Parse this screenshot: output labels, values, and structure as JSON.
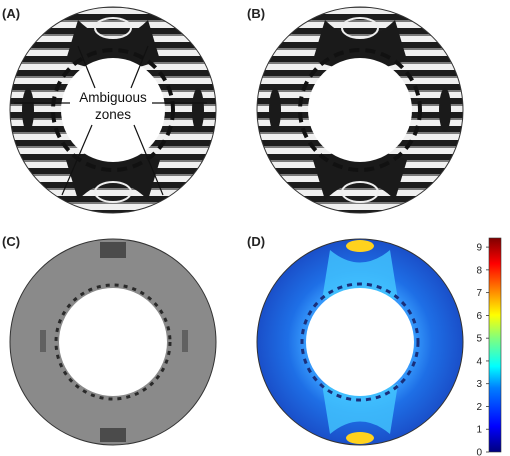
{
  "panels": [
    {
      "id": "A",
      "label": "(A)"
    },
    {
      "id": "B",
      "label": "(B)"
    },
    {
      "id": "C",
      "label": "(C)"
    },
    {
      "id": "D",
      "label": "(D)"
    }
  ],
  "annotation": {
    "line1": "Ambiguous",
    "line2": "zones"
  },
  "colorbar": {
    "min": 0,
    "max": 9.4,
    "ticks": [
      "0",
      "1",
      "2",
      "3",
      "4",
      "5",
      "6",
      "7",
      "8",
      "9"
    ],
    "colors": [
      "#00007f",
      "#0000ff",
      "#007fff",
      "#00ffff",
      "#7fff7f",
      "#ffff00",
      "#ff7f00",
      "#ff0000",
      "#7f0000"
    ]
  },
  "colors": {
    "fringe_dark": "#1a1a1a",
    "fringe_light": "#f2f2f2",
    "error_gray": "#8a8a8a",
    "map_base": "#1e5bd4",
    "map_hot": "#ffd21e"
  }
}
